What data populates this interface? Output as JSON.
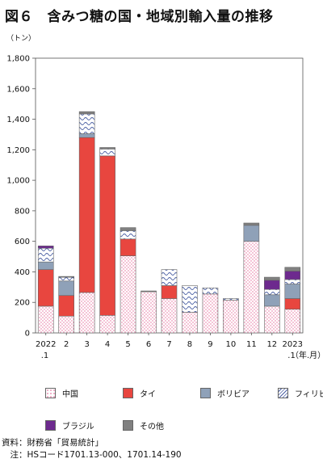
{
  "chart_data": {
    "type": "bar",
    "stacked": true,
    "title": "図６　含みつ糖の国・地域別輸入量の推移",
    "unit_label": "（トン）",
    "x_unit_label": "（年.月）",
    "ylim": [
      0,
      1800
    ],
    "yticks": [
      "0",
      "200",
      "400",
      "600",
      "800",
      "1,000",
      "1,200",
      "1,400",
      "1,600",
      "1,800"
    ],
    "ytick_values": [
      0,
      200,
      400,
      600,
      800,
      1000,
      1200,
      1400,
      1600,
      1800
    ],
    "categories": [
      {
        "main": "2022",
        "sub": ".1"
      },
      {
        "main": "2",
        "sub": ""
      },
      {
        "main": "3",
        "sub": ""
      },
      {
        "main": "4",
        "sub": ""
      },
      {
        "main": "5",
        "sub": ""
      },
      {
        "main": "6",
        "sub": ""
      },
      {
        "main": "7",
        "sub": ""
      },
      {
        "main": "8",
        "sub": ""
      },
      {
        "main": "9",
        "sub": ""
      },
      {
        "main": "10",
        "sub": ""
      },
      {
        "main": "11",
        "sub": ""
      },
      {
        "main": "12",
        "sub": ""
      },
      {
        "main": "2023",
        "sub": ".1"
      }
    ],
    "series": [
      {
        "name": "中国",
        "color": "#f7c8d8",
        "pattern": "dots",
        "values": [
          175,
          110,
          265,
          115,
          505,
          270,
          225,
          135,
          255,
          215,
          600,
          175,
          155
        ]
      },
      {
        "name": "タイ",
        "color": "#e8463f",
        "pattern": "solid",
        "values": [
          240,
          135,
          1015,
          1045,
          110,
          0,
          85,
          0,
          0,
          0,
          0,
          0,
          70
        ]
      },
      {
        "name": "ボリビア",
        "color": "#8fa1b8",
        "pattern": "solid",
        "values": [
          50,
          95,
          25,
          0,
          0,
          0,
          0,
          0,
          0,
          0,
          105,
          75,
          95
        ]
      },
      {
        "name": "フィリピン",
        "color": "#5b6ea8",
        "pattern": "wave",
        "values": [
          90,
          25,
          130,
          45,
          55,
          0,
          105,
          175,
          40,
          10,
          0,
          35,
          30
        ]
      },
      {
        "name": "ブラジル",
        "color": "#6d2a8e",
        "pattern": "solid",
        "values": [
          15,
          0,
          0,
          0,
          0,
          0,
          0,
          0,
          0,
          0,
          0,
          60,
          55
        ]
      },
      {
        "name": "その他",
        "color": "#808080",
        "pattern": "solid",
        "values": [
          0,
          5,
          15,
          10,
          20,
          5,
          0,
          0,
          0,
          0,
          15,
          20,
          25
        ]
      }
    ],
    "grid": false,
    "legend_placement": "bottom"
  },
  "source": {
    "line1": "資料：財務省「貿易統計」",
    "line2": "　注：HSコード1701.13-000、1701.14-190"
  }
}
